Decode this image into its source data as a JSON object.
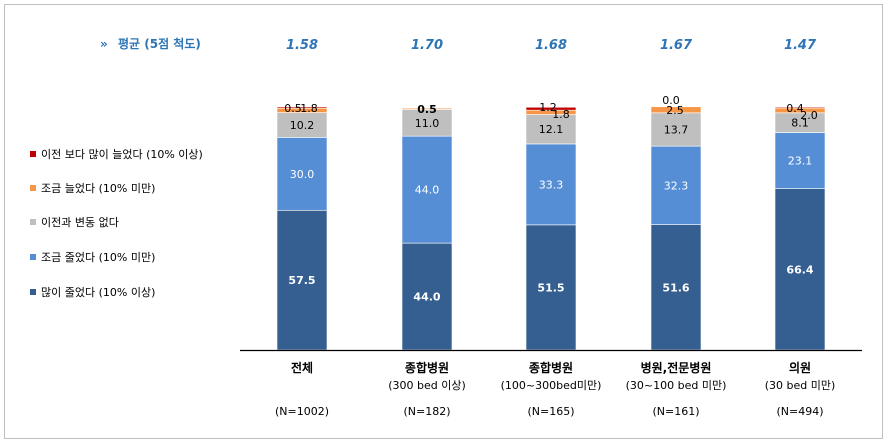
{
  "chart_data": {
    "type": "bar",
    "stacked": true,
    "average_title": "평균 (5점 척도)",
    "categories": [
      {
        "name": "전체",
        "sub": "",
        "n": "(N=1002)",
        "average": "1.58"
      },
      {
        "name": "종합병원",
        "sub": "(300 bed 이상)",
        "n": "(N=182)",
        "average": "1.70"
      },
      {
        "name": "종합병원",
        "sub": "(100~300bed미만)",
        "n": "(N=165)",
        "average": "1.68"
      },
      {
        "name": "병원,전문병원",
        "sub": "(30~100 bed 미만)",
        "n": "(N=161)",
        "average": "1.67"
      },
      {
        "name": "의원",
        "sub": "(30 bed 미만)",
        "n": "(N=494)",
        "average": "1.47"
      }
    ],
    "series": [
      {
        "name": "많이 줄었다 (10% 이상)",
        "color": "#365f91",
        "values": [
          57.5,
          44.0,
          51.5,
          51.6,
          66.4
        ],
        "labels": [
          "57.5",
          "44.0",
          "51.5",
          "51.6",
          "66.4"
        ]
      },
      {
        "name": "조금 줄었다 (10% 미만)",
        "color": "#558ed5",
        "values": [
          30.0,
          44.0,
          33.3,
          32.3,
          23.1
        ],
        "labels": [
          "30.0",
          "44.0",
          "33.3",
          "32.3",
          "23.1"
        ]
      },
      {
        "name": "이전과 변동 없다",
        "color": "#bfbfbf",
        "values": [
          10.2,
          11.0,
          12.1,
          13.7,
          8.1
        ],
        "labels": [
          "10.2",
          "11.0",
          "12.1",
          "13.7",
          "8.1"
        ]
      },
      {
        "name": "조금 늘었다 (10% 미만)",
        "color": "#f79646",
        "values": [
          1.8,
          0.5,
          1.8,
          2.5,
          2.0
        ],
        "labels": [
          "1.8",
          "0.5",
          "1.8",
          "2.5",
          "2.0"
        ]
      },
      {
        "name": "이전 보다 많이 늘었다 (10% 이상)",
        "color": "#c00000",
        "values": [
          0.5,
          0.0,
          1.2,
          0.0,
          0.4
        ],
        "labels": [
          "0.5",
          "",
          "1.2",
          "0.0",
          "0.4"
        ]
      }
    ],
    "ylim": [
      0,
      100
    ]
  }
}
